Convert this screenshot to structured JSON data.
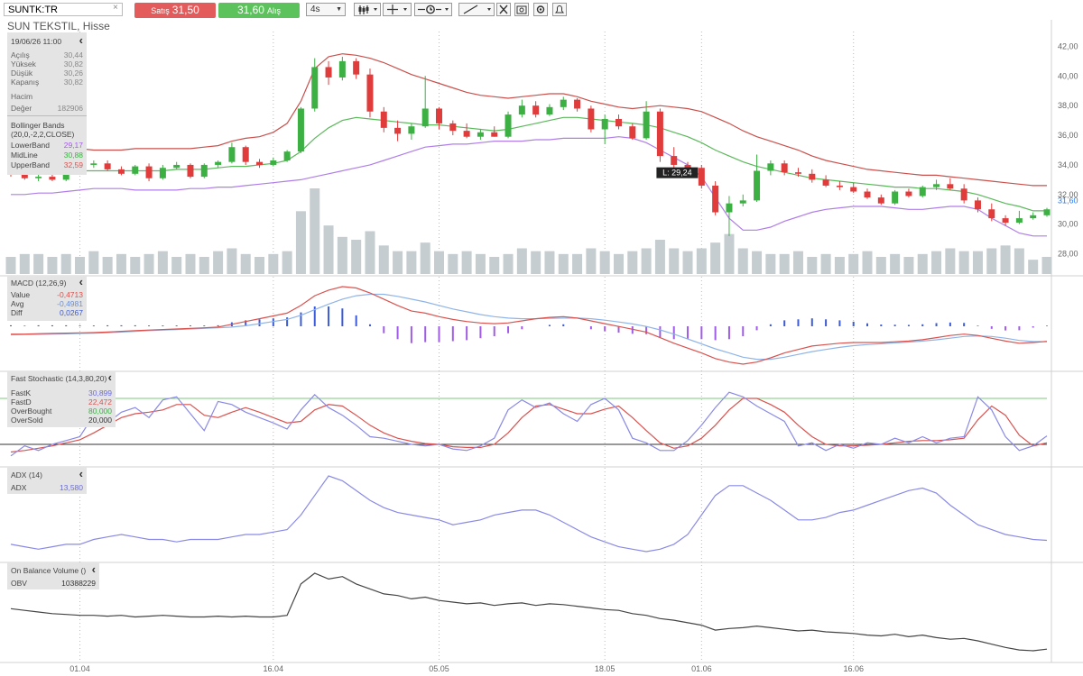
{
  "toolbar": {
    "symbol_value": "SUNTK:TR",
    "clear_glyph": "×",
    "sell_label": "Satış",
    "sell_price": "31,50",
    "buy_price": "31,60",
    "buy_label": "Alış",
    "period": "4s"
  },
  "instrument_title": "SUN TEKSTIL, Hisse",
  "ohlc_panel": {
    "datetime": "19/06/26 11:00",
    "rows": [
      {
        "label": "Açılış",
        "value": "30,44"
      },
      {
        "label": "Yüksek",
        "value": "30,82"
      },
      {
        "label": "Düşük",
        "value": "30,26"
      },
      {
        "label": "Kapanış",
        "value": "30,82"
      }
    ],
    "volume_title": "Hacim",
    "volume_label": "Değer",
    "volume_value": "182906"
  },
  "bollinger_panel": {
    "title": "Bollinger Bands",
    "params": "(20,0,-2,2,CLOSE)",
    "rows": [
      {
        "label": "LowerBand",
        "value": "29,17"
      },
      {
        "label": "MidLine",
        "value": "30,88"
      },
      {
        "label": "UpperBand",
        "value": "32,59"
      }
    ]
  },
  "macd_panel": {
    "title": "MACD (12,26,9)",
    "rows": [
      {
        "label": "Value",
        "value": "-0,4713"
      },
      {
        "label": "Avg",
        "value": "-0,4981"
      },
      {
        "label": "Diff",
        "value": "0,0267"
      }
    ]
  },
  "stoch_panel": {
    "title": "Fast Stochastic (14,3,80,20)",
    "rows": [
      {
        "label": "FastK",
        "value": "30,899"
      },
      {
        "label": "FastD",
        "value": "22,472"
      },
      {
        "label": "OverBought",
        "value": "80,000"
      },
      {
        "label": "OverSold",
        "value": "20,000"
      }
    ]
  },
  "adx_panel": {
    "title": "ADX (14)",
    "rows": [
      {
        "label": "ADX",
        "value": "13,580"
      }
    ]
  },
  "obv_panel": {
    "title": "On Balance Volume ()",
    "rows": [
      {
        "label": "OBV",
        "value": "10388229"
      }
    ]
  },
  "colors": {
    "up": "#3cb043",
    "down": "#e03c3c",
    "upper_band": "#c9504c",
    "mid_band": "#5cb85c",
    "lower_band": "#b07ee8",
    "volume": "#c5cdd0",
    "macd_value": "#d9534f",
    "macd_avg": "#8fb4e8",
    "macd_hist_pos": "#3b5bd9",
    "macd_hist_neg": "#a05ce6",
    "stoch_k": "#8a8ae6",
    "stoch_d": "#d9534f",
    "overbought": "#7bc87b",
    "adx": "#8a8ae6",
    "obv": "#444444",
    "last_price_label": "#2f7ae5"
  },
  "chart_data": {
    "type": "candlestick",
    "x_tick_labels": [
      "01.04",
      "16.04",
      "05.05",
      "18.05",
      "01.06",
      "16.06"
    ],
    "x_tick_index": [
      5,
      19,
      31,
      43,
      50,
      61
    ],
    "price_axis": {
      "ticks": [
        "42,00",
        "40,00",
        "38,00",
        "36,00",
        "34,00",
        "32,00",
        "30,00",
        "28,00"
      ],
      "ylim": [
        27,
        43
      ]
    },
    "last_price": "31,60",
    "low_marker": "L: 29,24",
    "low_marker_index": 47,
    "candles": [
      [
        33.6,
        33.9,
        33.2,
        33.4
      ],
      [
        33.4,
        33.7,
        33.0,
        33.1
      ],
      [
        33.1,
        33.4,
        32.9,
        33.2
      ],
      [
        33.2,
        33.5,
        32.9,
        33.0
      ],
      [
        33.0,
        33.8,
        32.9,
        33.7
      ],
      [
        33.7,
        34.2,
        33.5,
        34.0
      ],
      [
        34.0,
        34.3,
        33.8,
        34.1
      ],
      [
        34.1,
        34.3,
        33.6,
        33.7
      ],
      [
        33.7,
        33.9,
        33.3,
        33.4
      ],
      [
        33.4,
        34.0,
        33.3,
        33.9
      ],
      [
        33.9,
        34.1,
        32.9,
        33.1
      ],
      [
        33.1,
        34.0,
        33.0,
        33.8
      ],
      [
        33.8,
        34.2,
        33.7,
        34.0
      ],
      [
        34.0,
        34.1,
        33.1,
        33.2
      ],
      [
        33.2,
        34.1,
        33.1,
        34.0
      ],
      [
        34.0,
        34.3,
        33.8,
        34.2
      ],
      [
        34.2,
        35.5,
        34.1,
        35.2
      ],
      [
        35.2,
        35.3,
        34.0,
        34.2
      ],
      [
        34.2,
        34.4,
        33.8,
        34.0
      ],
      [
        34.0,
        34.5,
        33.9,
        34.3
      ],
      [
        34.3,
        35.0,
        34.2,
        34.9
      ],
      [
        34.9,
        37.9,
        34.8,
        37.8
      ],
      [
        37.8,
        41.2,
        37.6,
        40.6
      ],
      [
        40.6,
        41.0,
        39.4,
        39.9
      ],
      [
        39.9,
        41.3,
        39.7,
        41.0
      ],
      [
        41.0,
        41.2,
        39.8,
        40.1
      ],
      [
        40.1,
        40.5,
        37.2,
        37.6
      ],
      [
        37.6,
        37.9,
        36.2,
        36.5
      ],
      [
        36.5,
        37.0,
        35.6,
        36.1
      ],
      [
        36.1,
        36.8,
        35.7,
        36.6
      ],
      [
        36.6,
        40.0,
        36.5,
        37.8
      ],
      [
        37.8,
        37.9,
        36.4,
        36.8
      ],
      [
        36.8,
        37.0,
        36.0,
        36.3
      ],
      [
        36.3,
        36.8,
        35.8,
        35.9
      ],
      [
        35.9,
        36.4,
        35.7,
        36.2
      ],
      [
        36.2,
        36.6,
        35.9,
        35.9
      ],
      [
        35.9,
        37.6,
        35.8,
        37.4
      ],
      [
        37.4,
        38.4,
        37.2,
        38.0
      ],
      [
        38.0,
        38.3,
        37.2,
        37.4
      ],
      [
        37.4,
        38.1,
        37.3,
        37.9
      ],
      [
        37.9,
        38.6,
        37.7,
        38.4
      ],
      [
        38.4,
        38.5,
        37.6,
        37.8
      ],
      [
        37.8,
        38.0,
        36.2,
        36.4
      ],
      [
        36.4,
        37.4,
        35.4,
        37.1
      ],
      [
        37.1,
        37.4,
        36.4,
        36.6
      ],
      [
        36.6,
        36.8,
        35.7,
        35.8
      ],
      [
        35.8,
        38.3,
        35.7,
        37.6
      ],
      [
        37.6,
        37.8,
        34.2,
        34.6
      ],
      [
        34.6,
        35.2,
        33.6,
        34.0
      ],
      [
        34.0,
        34.2,
        33.7,
        33.8
      ],
      [
        33.8,
        34.0,
        32.4,
        32.6
      ],
      [
        32.6,
        32.9,
        30.6,
        30.8
      ],
      [
        30.8,
        31.9,
        29.2,
        31.4
      ],
      [
        31.4,
        32.0,
        31.2,
        31.6
      ],
      [
        31.6,
        34.7,
        31.5,
        33.6
      ],
      [
        33.6,
        34.3,
        33.3,
        34.1
      ],
      [
        34.1,
        34.3,
        33.3,
        33.5
      ],
      [
        33.5,
        33.8,
        33.2,
        33.4
      ],
      [
        33.4,
        33.7,
        32.8,
        33.0
      ],
      [
        33.0,
        33.3,
        32.5,
        32.6
      ],
      [
        32.6,
        32.9,
        32.3,
        32.5
      ],
      [
        32.5,
        32.8,
        32.1,
        32.2
      ],
      [
        32.2,
        32.4,
        31.7,
        31.8
      ],
      [
        31.8,
        32.0,
        31.3,
        31.4
      ],
      [
        31.4,
        32.3,
        31.3,
        32.2
      ],
      [
        32.2,
        32.4,
        31.8,
        31.9
      ],
      [
        31.9,
        32.6,
        31.8,
        32.5
      ],
      [
        32.5,
        33.0,
        32.3,
        32.7
      ],
      [
        32.7,
        33.1,
        32.3,
        32.4
      ],
      [
        32.4,
        32.7,
        31.4,
        31.6
      ],
      [
        31.6,
        31.8,
        30.8,
        31.0
      ],
      [
        31.0,
        31.4,
        30.2,
        30.4
      ],
      [
        30.4,
        30.6,
        29.9,
        30.1
      ],
      [
        30.1,
        30.9,
        30.0,
        30.4
      ],
      [
        30.4,
        30.8,
        30.3,
        30.6
      ],
      [
        30.6,
        31.1,
        30.5,
        31.0
      ]
    ],
    "upper_band": [
      35.4,
      35.3,
      35.2,
      35.2,
      35.1,
      35.1,
      35.0,
      35.0,
      35.0,
      35.1,
      35.1,
      35.1,
      35.1,
      35.1,
      35.2,
      35.3,
      35.6,
      35.8,
      35.9,
      36.2,
      36.8,
      38.3,
      40.5,
      41.3,
      41.5,
      41.4,
      41.2,
      40.9,
      40.5,
      40.1,
      39.8,
      39.5,
      39.2,
      38.9,
      38.7,
      38.6,
      38.5,
      38.6,
      38.7,
      38.8,
      38.8,
      38.6,
      38.3,
      38.1,
      37.9,
      37.8,
      37.9,
      38.0,
      37.9,
      37.8,
      37.6,
      37.2,
      36.8,
      36.3,
      35.9,
      35.6,
      35.3,
      35.0,
      34.6,
      34.3,
      34.1,
      33.9,
      33.7,
      33.6,
      33.5,
      33.4,
      33.3,
      33.3,
      33.2,
      33.1,
      33.0,
      32.9,
      32.8,
      32.7,
      32.6,
      32.6
    ],
    "mid_band": [
      33.7,
      33.6,
      33.5,
      33.5,
      33.5,
      33.6,
      33.6,
      33.6,
      33.6,
      33.6,
      33.6,
      33.6,
      33.7,
      33.7,
      33.7,
      33.8,
      33.9,
      33.9,
      34.0,
      34.1,
      34.3,
      34.9,
      35.8,
      36.5,
      37.0,
      37.2,
      37.1,
      37.0,
      36.9,
      36.8,
      36.7,
      36.7,
      36.6,
      36.5,
      36.4,
      36.3,
      36.4,
      36.6,
      36.8,
      37.0,
      37.2,
      37.2,
      37.1,
      37.0,
      36.9,
      36.8,
      36.7,
      36.5,
      36.2,
      35.9,
      35.5,
      35.0,
      34.6,
      34.2,
      33.9,
      33.7,
      33.5,
      33.3,
      33.1,
      33.0,
      32.9,
      32.8,
      32.7,
      32.6,
      32.5,
      32.5,
      32.4,
      32.4,
      32.3,
      32.2,
      32.0,
      31.7,
      31.4,
      31.2,
      30.9,
      30.9
    ],
    "lower_band": [
      32.0,
      32.0,
      32.1,
      32.1,
      32.2,
      32.3,
      32.4,
      32.4,
      32.4,
      32.3,
      32.3,
      32.3,
      32.3,
      32.4,
      32.4,
      32.5,
      32.5,
      32.6,
      32.7,
      32.8,
      32.9,
      33.0,
      33.2,
      33.4,
      33.6,
      33.8,
      34.0,
      34.3,
      34.6,
      34.9,
      35.2,
      35.3,
      35.4,
      35.4,
      35.5,
      35.6,
      35.6,
      35.6,
      35.7,
      35.7,
      35.8,
      35.8,
      35.8,
      35.8,
      35.9,
      35.8,
      35.5,
      35.0,
      34.5,
      34.0,
      33.2,
      31.8,
      30.4,
      29.6,
      29.6,
      29.8,
      30.2,
      30.5,
      30.8,
      31.0,
      31.1,
      31.2,
      31.2,
      31.2,
      31.1,
      31.0,
      31.0,
      31.1,
      31.2,
      31.2,
      31.0,
      30.4,
      29.9,
      29.4,
      29.2,
      29.2
    ],
    "volume": [
      6,
      7,
      7,
      6,
      7,
      6,
      8,
      6,
      7,
      6,
      7,
      8,
      6,
      7,
      6,
      8,
      9,
      7,
      6,
      7,
      8,
      22,
      30,
      17,
      13,
      12,
      15,
      10,
      8,
      8,
      11,
      8,
      7,
      8,
      7,
      6,
      7,
      9,
      8,
      8,
      7,
      7,
      9,
      8,
      7,
      8,
      9,
      12,
      9,
      8,
      9,
      11,
      14,
      9,
      8,
      7,
      7,
      8,
      6,
      7,
      6,
      7,
      8,
      6,
      7,
      6,
      7,
      8,
      9,
      8,
      8,
      9,
      10,
      9,
      5,
      6
    ],
    "macd_value": [
      0.05,
      0.05,
      0.08,
      0.1,
      0.12,
      0.14,
      0.16,
      0.2,
      0.25,
      0.3,
      0.34,
      0.38,
      0.42,
      0.46,
      0.5,
      0.55,
      0.75,
      0.95,
      1.15,
      1.35,
      1.55,
      2.1,
      2.8,
      3.2,
      3.45,
      3.35,
      3.0,
      2.55,
      2.1,
      1.7,
      1.55,
      1.3,
      1.1,
      0.95,
      0.85,
      0.8,
      0.85,
      1.0,
      1.15,
      1.25,
      1.3,
      1.2,
      1.0,
      0.8,
      0.6,
      0.4,
      0.2,
      -0.2,
      -0.6,
      -0.95,
      -1.3,
      -1.7,
      -1.95,
      -2.1,
      -1.95,
      -1.65,
      -1.3,
      -1.05,
      -0.8,
      -0.7,
      -0.6,
      -0.55,
      -0.55,
      -0.55,
      -0.5,
      -0.45,
      -0.35,
      -0.2,
      -0.05,
      0.05,
      -0.05,
      -0.25,
      -0.45,
      -0.6,
      -0.55,
      -0.47
    ],
    "macd_avg": [
      0.0,
      0.02,
      0.03,
      0.05,
      0.07,
      0.1,
      0.12,
      0.15,
      0.2,
      0.25,
      0.3,
      0.34,
      0.38,
      0.42,
      0.46,
      0.5,
      0.55,
      0.65,
      0.8,
      0.95,
      1.1,
      1.4,
      1.8,
      2.2,
      2.55,
      2.8,
      2.9,
      2.9,
      2.75,
      2.55,
      2.35,
      2.1,
      1.85,
      1.65,
      1.45,
      1.3,
      1.2,
      1.15,
      1.15,
      1.18,
      1.2,
      1.2,
      1.15,
      1.05,
      0.92,
      0.78,
      0.6,
      0.35,
      0.05,
      -0.3,
      -0.65,
      -1.0,
      -1.3,
      -1.6,
      -1.75,
      -1.75,
      -1.6,
      -1.4,
      -1.2,
      -1.05,
      -0.9,
      -0.78,
      -0.7,
      -0.64,
      -0.58,
      -0.52,
      -0.45,
      -0.36,
      -0.24,
      -0.12,
      -0.08,
      -0.12,
      -0.24,
      -0.4,
      -0.48,
      -0.5
    ],
    "stoch_k": [
      5,
      18,
      12,
      20,
      25,
      30,
      58,
      48,
      62,
      68,
      55,
      78,
      82,
      60,
      38,
      76,
      72,
      62,
      55,
      48,
      40,
      65,
      85,
      68,
      58,
      45,
      30,
      28,
      24,
      20,
      18,
      20,
      14,
      12,
      18,
      28,
      65,
      78,
      68,
      74,
      60,
      50,
      72,
      80,
      65,
      28,
      22,
      12,
      12,
      25,
      45,
      68,
      88,
      82,
      70,
      60,
      50,
      18,
      22,
      12,
      20,
      15,
      22,
      20,
      28,
      22,
      30,
      22,
      28,
      30,
      82,
      65,
      30,
      12,
      18,
      31
    ],
    "stoch_d": [
      10,
      12,
      15,
      18,
      22,
      26,
      35,
      45,
      55,
      60,
      62,
      65,
      72,
      72,
      58,
      55,
      62,
      68,
      62,
      55,
      48,
      50,
      65,
      72,
      70,
      58,
      45,
      35,
      28,
      24,
      21,
      20,
      17,
      16,
      16,
      20,
      35,
      55,
      70,
      72,
      66,
      60,
      60,
      66,
      70,
      55,
      38,
      22,
      15,
      18,
      28,
      45,
      65,
      80,
      80,
      72,
      62,
      45,
      30,
      20,
      18,
      18,
      19,
      20,
      22,
      24,
      25,
      25,
      26,
      28,
      52,
      70,
      58,
      32,
      18,
      22
    ],
    "adx": [
      12,
      11,
      10,
      11,
      12,
      12,
      14,
      15,
      16,
      15,
      14,
      14,
      13,
      14,
      14,
      14,
      15,
      16,
      16,
      17,
      18,
      24,
      32,
      40,
      38,
      34,
      30,
      27,
      25,
      24,
      23,
      22,
      20,
      21,
      22,
      24,
      25,
      26,
      26,
      24,
      21,
      18,
      15,
      13,
      11,
      10,
      9,
      10,
      12,
      16,
      24,
      32,
      36,
      36,
      33,
      30,
      26,
      22,
      22,
      23,
      25,
      26,
      28,
      30,
      32,
      34,
      35,
      33,
      28,
      24,
      20,
      18,
      16,
      15,
      14,
      13.6
    ],
    "obv": [
      5.2,
      5.0,
      4.8,
      4.6,
      4.5,
      4.4,
      4.4,
      4.3,
      4.4,
      4.2,
      4.3,
      4.4,
      4.3,
      4.2,
      4.2,
      4.3,
      4.2,
      4.3,
      4.2,
      4.2,
      4.4,
      8.2,
      9.5,
      8.8,
      9.1,
      8.2,
      7.6,
      7.0,
      6.8,
      6.4,
      6.6,
      6.2,
      6.0,
      5.8,
      5.9,
      5.6,
      5.8,
      5.9,
      5.6,
      5.8,
      5.7,
      5.5,
      5.3,
      5.1,
      5.0,
      4.6,
      4.4,
      4.0,
      3.8,
      3.5,
      3.2,
      2.6,
      2.8,
      2.9,
      3.1,
      2.9,
      2.7,
      2.5,
      2.6,
      2.4,
      2.3,
      2.2,
      2.0,
      1.9,
      2.1,
      1.8,
      2.0,
      1.7,
      1.5,
      1.6,
      1.3,
      0.9,
      0.5,
      0.2,
      0.1,
      0.3
    ]
  }
}
